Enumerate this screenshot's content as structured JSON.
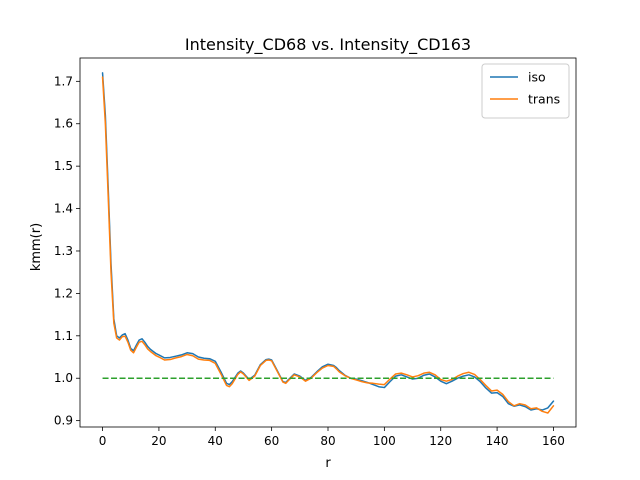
{
  "chart_data": {
    "type": "line",
    "title": "Intensity_CD68 vs. Intensity_CD163",
    "xlabel": "r",
    "ylabel": "kmm(r)",
    "xlim": [
      -8,
      168
    ],
    "ylim": [
      0.885,
      1.755
    ],
    "xticks": [
      0,
      20,
      40,
      60,
      80,
      100,
      120,
      140,
      160
    ],
    "xtick_labels": [
      "0",
      "20",
      "40",
      "60",
      "80",
      "100",
      "120",
      "140",
      "160"
    ],
    "yticks": [
      0.9,
      1.0,
      1.1,
      1.2,
      1.3,
      1.4,
      1.5,
      1.6,
      1.7
    ],
    "ytick_labels": [
      "0.9",
      "1.0",
      "1.1",
      "1.2",
      "1.3",
      "1.4",
      "1.5",
      "1.6",
      "1.7"
    ],
    "grid": false,
    "legend_position": "top-right",
    "x": [
      0,
      1,
      2,
      3,
      4,
      5,
      6,
      7,
      8,
      9,
      10,
      11,
      12,
      13,
      14,
      15,
      16,
      17,
      18,
      19,
      20,
      22,
      24,
      26,
      28,
      30,
      32,
      34,
      36,
      38,
      40,
      42,
      44,
      45,
      46,
      48,
      49,
      50,
      52,
      54,
      56,
      58,
      59,
      60,
      62,
      64,
      65,
      66,
      68,
      70,
      72,
      74,
      76,
      78,
      80,
      82,
      83,
      84,
      86,
      88,
      90,
      92,
      94,
      96,
      98,
      100,
      102,
      104,
      106,
      108,
      110,
      112,
      114,
      116,
      118,
      120,
      122,
      124,
      126,
      128,
      130,
      132,
      134,
      136,
      138,
      140,
      142,
      144,
      146,
      148,
      150,
      152,
      154,
      156,
      158,
      160
    ],
    "series": [
      {
        "name": "iso",
        "color": "#1f77b4",
        "dashed": false,
        "values": [
          1.72,
          1.62,
          1.45,
          1.27,
          1.14,
          1.1,
          1.095,
          1.102,
          1.105,
          1.09,
          1.07,
          1.065,
          1.078,
          1.09,
          1.093,
          1.085,
          1.075,
          1.068,
          1.063,
          1.058,
          1.055,
          1.048,
          1.049,
          1.052,
          1.055,
          1.06,
          1.058,
          1.05,
          1.047,
          1.046,
          1.04,
          1.015,
          0.988,
          0.985,
          0.992,
          1.012,
          1.017,
          1.012,
          0.997,
          1.007,
          1.032,
          1.044,
          1.045,
          1.043,
          1.018,
          0.992,
          0.99,
          0.997,
          1.01,
          1.005,
          0.995,
          1.002,
          1.015,
          1.027,
          1.033,
          1.03,
          1.025,
          1.018,
          1.007,
          1.0,
          0.998,
          0.994,
          0.99,
          0.985,
          0.98,
          0.978,
          0.992,
          1.005,
          1.008,
          1.003,
          0.998,
          1.0,
          1.007,
          1.01,
          1.003,
          0.993,
          0.987,
          0.993,
          1.0,
          1.005,
          1.008,
          1.003,
          0.992,
          0.977,
          0.965,
          0.966,
          0.957,
          0.94,
          0.934,
          0.937,
          0.933,
          0.925,
          0.928,
          0.925,
          0.93,
          0.946
        ]
      },
      {
        "name": "trans",
        "color": "#ff7f0e",
        "dashed": false,
        "values": [
          1.71,
          1.6,
          1.43,
          1.25,
          1.13,
          1.095,
          1.09,
          1.098,
          1.099,
          1.085,
          1.066,
          1.06,
          1.073,
          1.085,
          1.087,
          1.079,
          1.069,
          1.063,
          1.058,
          1.053,
          1.05,
          1.043,
          1.044,
          1.048,
          1.051,
          1.056,
          1.053,
          1.045,
          1.043,
          1.042,
          1.035,
          1.01,
          0.983,
          0.98,
          0.987,
          1.009,
          1.015,
          1.01,
          0.995,
          1.005,
          1.03,
          1.042,
          1.043,
          1.041,
          1.016,
          0.991,
          0.988,
          0.995,
          1.008,
          1.003,
          0.993,
          1.0,
          1.013,
          1.024,
          1.03,
          1.028,
          1.022,
          1.015,
          1.006,
          1.0,
          0.996,
          0.992,
          0.989,
          0.988,
          0.986,
          0.985,
          0.998,
          1.01,
          1.012,
          1.008,
          1.003,
          1.006,
          1.012,
          1.014,
          1.008,
          0.997,
          0.993,
          0.997,
          1.005,
          1.011,
          1.014,
          1.009,
          0.997,
          0.983,
          0.97,
          0.972,
          0.962,
          0.945,
          0.935,
          0.94,
          0.937,
          0.928,
          0.93,
          0.922,
          0.918,
          0.935
        ]
      },
      {
        "name": "",
        "color": "#2ca02c",
        "dashed": true,
        "values": [
          1.0,
          1.0,
          1.0,
          1.0,
          1.0,
          1.0,
          1.0,
          1.0,
          1.0,
          1.0,
          1.0,
          1.0,
          1.0,
          1.0,
          1.0,
          1.0,
          1.0,
          1.0,
          1.0,
          1.0,
          1.0,
          1.0,
          1.0,
          1.0,
          1.0,
          1.0,
          1.0,
          1.0,
          1.0,
          1.0,
          1.0,
          1.0,
          1.0,
          1.0,
          1.0,
          1.0,
          1.0,
          1.0,
          1.0,
          1.0,
          1.0,
          1.0,
          1.0,
          1.0,
          1.0,
          1.0,
          1.0,
          1.0,
          1.0,
          1.0,
          1.0,
          1.0,
          1.0,
          1.0,
          1.0,
          1.0,
          1.0,
          1.0,
          1.0,
          1.0,
          1.0,
          1.0,
          1.0,
          1.0,
          1.0,
          1.0,
          1.0,
          1.0,
          1.0,
          1.0,
          1.0,
          1.0,
          1.0,
          1.0,
          1.0,
          1.0,
          1.0,
          1.0,
          1.0,
          1.0,
          1.0,
          1.0,
          1.0,
          1.0,
          1.0,
          1.0,
          1.0,
          1.0,
          1.0,
          1.0,
          1.0,
          1.0,
          1.0,
          1.0,
          1.0,
          1.0
        ]
      }
    ]
  }
}
